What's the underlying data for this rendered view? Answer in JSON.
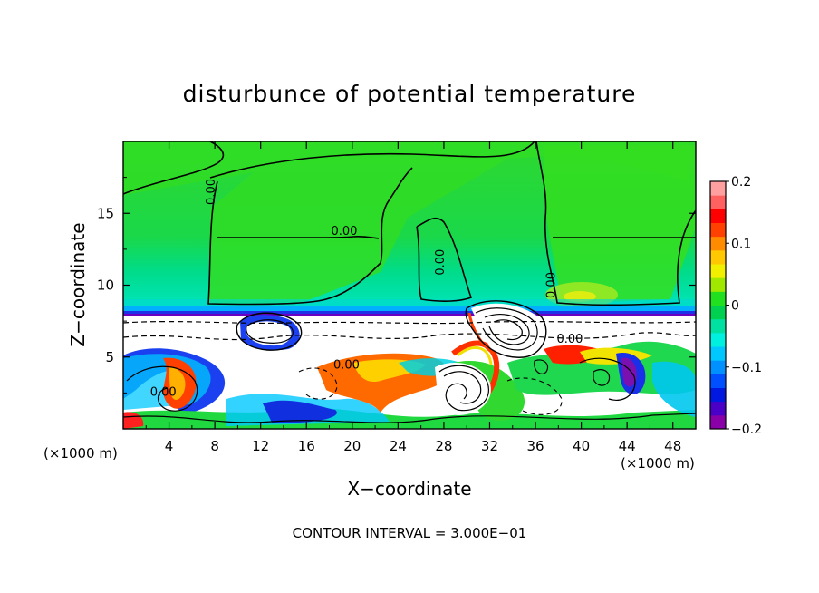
{
  "chart_data": {
    "type": "heatmap",
    "title": "disturbunce of potential temperature",
    "xlabel": "X−coordinate",
    "ylabel": "Z−coordinate",
    "x_unit_label": "(×1000 m)",
    "z_unit_label": "(×1000 m)",
    "footer": "CONTOUR INTERVAL = 3.000E−01",
    "xlim": [
      0,
      50
    ],
    "ylim": [
      0,
      20
    ],
    "x_ticks": [
      4,
      8,
      12,
      16,
      20,
      24,
      28,
      32,
      36,
      40,
      44,
      48
    ],
    "y_ticks": [
      5,
      10,
      15
    ],
    "colorbar": {
      "range": [
        -0.2,
        0.2
      ],
      "tick_values": [
        0.2,
        0.1,
        0,
        -0.1,
        -0.2
      ],
      "tick_labels": [
        "0.2",
        "0.1",
        "0",
        "−0.1",
        "−0.2"
      ],
      "colors": [
        "#8a00a8",
        "#4b00c8",
        "#0018e0",
        "#0050ff",
        "#0090ff",
        "#00c8ff",
        "#00f0e0",
        "#00e0a0",
        "#00d050",
        "#20e020",
        "#a0e800",
        "#f0f000",
        "#ffc800",
        "#ff8c00",
        "#ff4000",
        "#ff0000",
        "#ff6060",
        "#ffa0a0"
      ]
    },
    "contour_labels": [
      {
        "text": "0.00",
        "x": 8.0,
        "z": 16.5,
        "angle": -90
      },
      {
        "text": "0.00",
        "x": 19.3,
        "z": 13.5,
        "angle": 0
      },
      {
        "text": "0.00",
        "x": 28.0,
        "z": 11.6,
        "angle": -90
      },
      {
        "text": "0.00",
        "x": 37.7,
        "z": 10.0,
        "angle": -90
      },
      {
        "text": "0.00",
        "x": 39.0,
        "z": 6.0,
        "angle": 0
      },
      {
        "text": "0.00",
        "x": 19.5,
        "z": 4.2,
        "angle": 0
      },
      {
        "text": "0.00",
        "x": 3.5,
        "z": 2.3,
        "angle": 0
      }
    ]
  }
}
